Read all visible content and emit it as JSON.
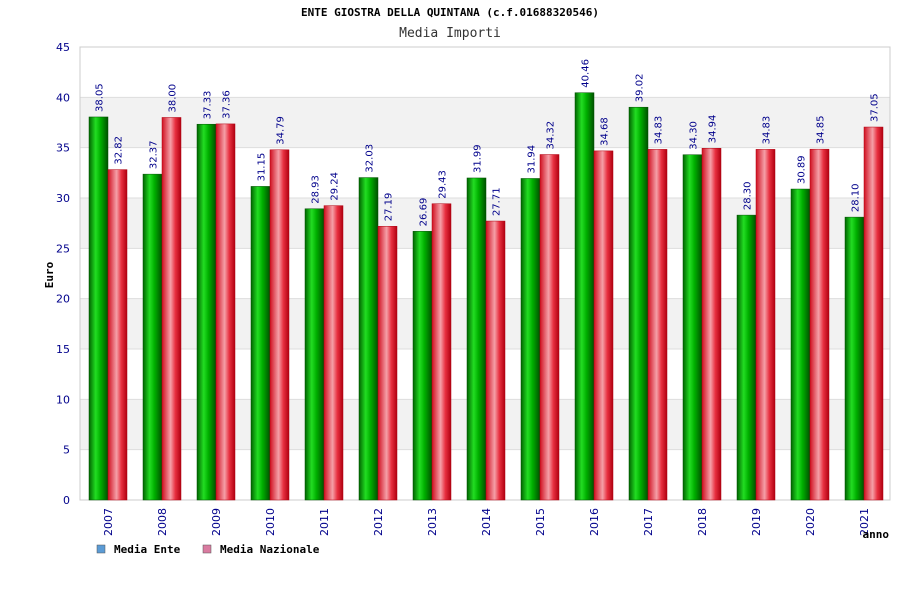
{
  "chart_data": {
    "type": "bar",
    "title": "ENTE GIOSTRA DELLA QUINTANA (c.f.01688320546)",
    "subtitle": "Media Importi",
    "xlabel": "anno",
    "ylabel": "Euro",
    "ylim": [
      0,
      45
    ],
    "yticks": [
      0,
      5,
      10,
      15,
      20,
      25,
      30,
      35,
      40,
      45
    ],
    "grid": true,
    "legend_position": "bottom-left",
    "categories": [
      "2007",
      "2008",
      "2009",
      "2010",
      "2011",
      "2012",
      "2013",
      "2014",
      "2015",
      "2016",
      "2017",
      "2018",
      "2019",
      "2020",
      "2021"
    ],
    "series": [
      {
        "name": "Media Ente",
        "color": "#00b300",
        "legend_color": "#5b9bd5",
        "values": [
          38.05,
          32.37,
          37.33,
          31.15,
          28.93,
          32.03,
          26.69,
          31.99,
          31.94,
          40.46,
          39.02,
          34.3,
          28.3,
          30.89,
          28.1
        ],
        "labels": [
          "38.05",
          "32.37",
          "37.33",
          "31.15",
          "28.93",
          "32.03",
          "26.69",
          "31.99",
          "31.94",
          "40.46",
          "39.02",
          "34.30",
          "28.30",
          "30.89",
          "28.10"
        ]
      },
      {
        "name": "Media Nazionale",
        "color": "#e0202a",
        "legend_color": "#d97ba0",
        "values": [
          32.82,
          38.0,
          37.36,
          34.79,
          29.24,
          27.19,
          29.43,
          27.71,
          34.32,
          34.68,
          34.83,
          34.94,
          34.83,
          34.85,
          37.05
        ],
        "labels": [
          "32.82",
          "38.00",
          "37.36",
          "34.79",
          "29.24",
          "27.19",
          "29.43",
          "27.71",
          "34.32",
          "34.68",
          "34.83",
          "34.94",
          "34.83",
          "34.85",
          "37.05"
        ]
      }
    ]
  }
}
